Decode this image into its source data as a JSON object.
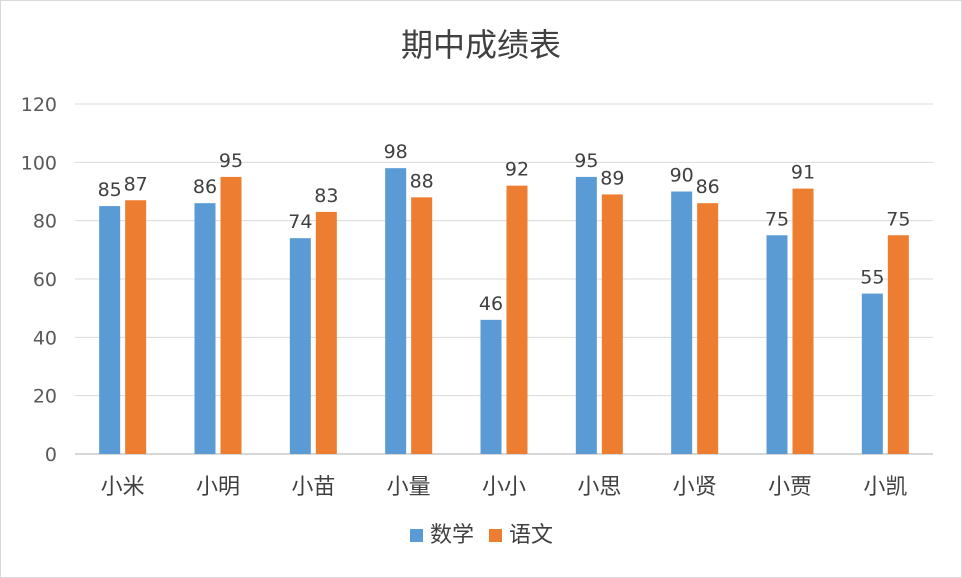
{
  "chart_data": {
    "type": "bar",
    "title": "期中成绩表",
    "xlabel": "",
    "ylabel": "",
    "ylim": [
      0,
      120
    ],
    "yticks": [
      0,
      20,
      40,
      60,
      80,
      100,
      120
    ],
    "grid": true,
    "legend_position": "bottom",
    "categories": [
      "小米",
      "小明",
      "小苗",
      "小量",
      "小小",
      "小思",
      "小贤",
      "小贾",
      "小凯"
    ],
    "series": [
      {
        "name": "数学",
        "color": "#5b9bd5",
        "values": [
          85,
          86,
          74,
          98,
          46,
          95,
          90,
          75,
          55
        ]
      },
      {
        "name": "语文",
        "color": "#ed7d31",
        "values": [
          87,
          95,
          83,
          88,
          92,
          89,
          86,
          91,
          75
        ]
      }
    ]
  }
}
